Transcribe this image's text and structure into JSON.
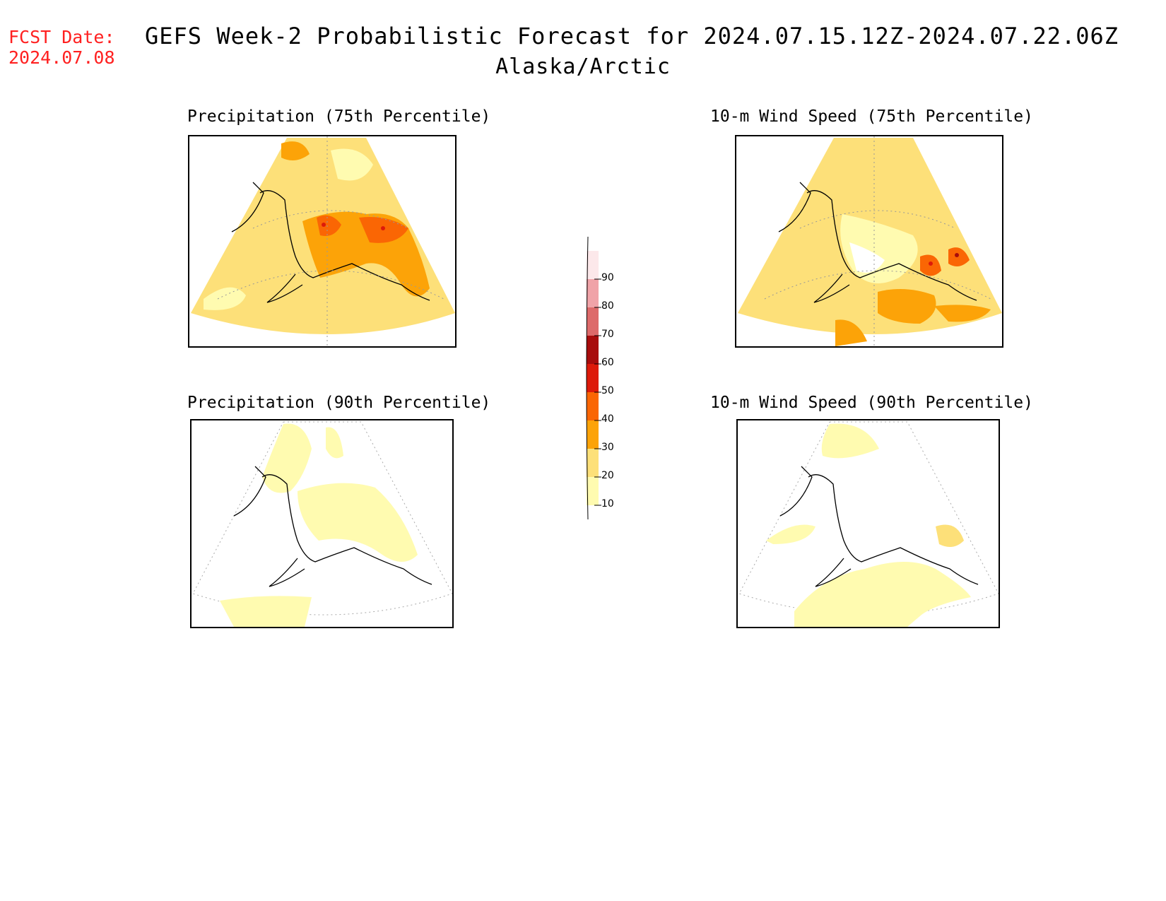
{
  "fcst": {
    "line1": "FCST Date:",
    "line2": "2024.07.08"
  },
  "title": {
    "line1": "GEFS Week-2 Probabilistic Forecast for 2024.07.15.12Z-2024.07.22.06Z",
    "line2": "Alaska/Arctic"
  },
  "panels": [
    {
      "title": "Precipitation (75th Percentile)"
    },
    {
      "title": "10-m Wind Speed (75th Percentile)"
    },
    {
      "title": "Precipitation (90th Percentile)"
    },
    {
      "title": "10-m Wind Speed (90th Percentile)"
    }
  ],
  "colorbar": {
    "labels": [
      "90",
      "80",
      "70",
      "60",
      "50",
      "40",
      "30",
      "20",
      "10"
    ],
    "colors": [
      "#fce8ea",
      "#f0a3a8",
      "#dd6a6a",
      "#a80c0c",
      "#dd1a0a",
      "#fa6604",
      "#fca308",
      "#fde079",
      "#fffbb0"
    ]
  }
}
